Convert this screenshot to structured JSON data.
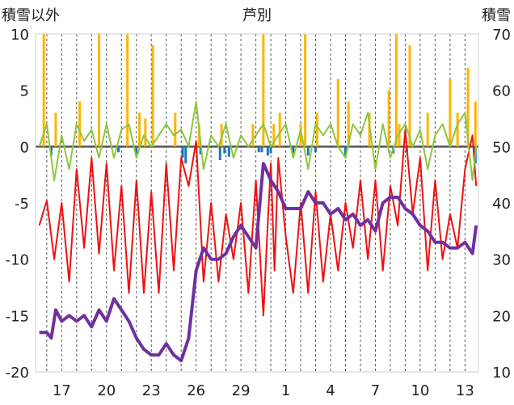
{
  "chart_data": {
    "type": "line",
    "title": "芦別",
    "ylabel_left": "積雪以外",
    "ylabel_right": "積雪",
    "x_tick_labels": [
      "17",
      "20",
      "23",
      "26",
      "29",
      "1",
      "4",
      "7",
      "10",
      "13"
    ],
    "left_axis": {
      "ylim": [
        -20,
        10
      ],
      "ticks": [
        10,
        5,
        0,
        -5,
        -10,
        -15,
        -20
      ]
    },
    "right_axis": {
      "ylim": [
        10,
        70
      ],
      "ticks": [
        70,
        60,
        50,
        40,
        30,
        20,
        10
      ]
    },
    "grid": "vertical dashed, one per day",
    "colors": {
      "red": "#ee1111",
      "green": "#8dc63f",
      "purple": "#7030a0",
      "orange": "#ffb400",
      "blue": "#1f77b4",
      "zero_line": "#555555"
    },
    "series": [
      {
        "axis": "left",
        "color": "red",
        "x": [
          15.5,
          16.0,
          16.5,
          17.0,
          17.5,
          18.0,
          18.5,
          19.0,
          19.5,
          20.0,
          20.5,
          21.0,
          21.5,
          22.0,
          22.5,
          23.0,
          23.5,
          24.0,
          24.5,
          25.0,
          25.5,
          26.0,
          26.5,
          27.0,
          27.5,
          28.0,
          28.5,
          29.0,
          29.5,
          30.0,
          30.5,
          30.75,
          31.0,
          31.25,
          31.5,
          32.0,
          32.5,
          33.0,
          33.5,
          34.0,
          34.5,
          35.0,
          35.5,
          36.0,
          36.5,
          37.0,
          37.5,
          38.0,
          38.5,
          39.0,
          39.5,
          40.0,
          40.5,
          41.0,
          41.5,
          42.0,
          42.5,
          43.0,
          43.5,
          44.0,
          44.5,
          44.75
        ],
        "y": [
          -7,
          -4.8,
          -10,
          -5,
          -12,
          -2,
          -9,
          -1,
          -9.5,
          -1.5,
          -11,
          -3.5,
          -13,
          -3,
          -13,
          -4,
          -13,
          -1.5,
          -11,
          -1,
          -3.5,
          0.5,
          -12,
          -5,
          -12,
          -6,
          -10,
          -5,
          -13,
          -3,
          -15,
          -8,
          -1.5,
          -11,
          -1,
          -8,
          -13,
          -5,
          -13,
          -4,
          -12,
          -6,
          -11,
          -5,
          -9,
          -3,
          -10,
          -3,
          -11,
          -3.5,
          -7,
          1.5,
          -6,
          -1,
          -11,
          -3,
          -10,
          -6,
          -9,
          -2,
          1,
          -3.5
        ]
      },
      {
        "axis": "left",
        "color": "green",
        "x": [
          15.5,
          16.0,
          16.5,
          17.0,
          17.5,
          18.0,
          18.5,
          19.0,
          19.5,
          20.0,
          20.5,
          21.0,
          21.5,
          22.0,
          22.5,
          23.0,
          23.5,
          24.0,
          24.5,
          25.0,
          25.5,
          26.0,
          26.5,
          27.0,
          27.5,
          28.0,
          28.5,
          29.0,
          29.5,
          30.0,
          30.5,
          31.0,
          31.5,
          32.0,
          32.5,
          33.0,
          33.5,
          34.0,
          34.5,
          35.0,
          35.5,
          36.0,
          36.5,
          37.0,
          37.5,
          38.0,
          38.5,
          39.0,
          39.5,
          40.0,
          40.5,
          41.0,
          41.5,
          42.0,
          42.5,
          43.0,
          43.5,
          44.0,
          44.5,
          44.75
        ],
        "y": [
          0,
          2,
          -3,
          1,
          -2,
          2,
          0.5,
          1.5,
          -1,
          2,
          -1,
          1.5,
          2,
          -1,
          1,
          0,
          1,
          2,
          1,
          1.5,
          0,
          4,
          -2,
          1,
          0,
          2,
          -1,
          1,
          0,
          1,
          2,
          0,
          1,
          2,
          -1,
          1.5,
          -2,
          2,
          1,
          2,
          0,
          -1,
          2,
          1,
          3,
          -2,
          2,
          -1,
          1,
          2,
          0,
          1.5,
          -2,
          1,
          2,
          0,
          2,
          3,
          -3,
          0
        ]
      },
      {
        "axis": "right",
        "color": "purple",
        "x": [
          15.5,
          16.0,
          16.3,
          16.6,
          17.0,
          17.5,
          18.0,
          18.5,
          19.0,
          19.5,
          20.0,
          20.5,
          21.0,
          21.5,
          22.0,
          22.5,
          23.0,
          23.5,
          24.0,
          24.5,
          25.0,
          25.5,
          26.0,
          26.5,
          27.0,
          27.5,
          28.0,
          28.5,
          29.0,
          29.5,
          30.0,
          30.5,
          31.0,
          31.5,
          32.0,
          32.5,
          33.0,
          33.5,
          34.0,
          34.5,
          35.0,
          35.5,
          36.0,
          36.5,
          37.0,
          37.5,
          38.0,
          38.5,
          39.0,
          39.5,
          40.0,
          40.5,
          41.0,
          41.5,
          42.0,
          42.5,
          43.0,
          43.5,
          44.0,
          44.5,
          44.75
        ],
        "y": [
          17,
          17,
          16,
          21,
          19,
          20,
          19,
          20,
          18,
          21,
          19,
          23,
          21,
          19,
          16,
          14,
          13,
          13,
          15,
          13,
          12,
          16,
          28,
          32,
          30,
          30,
          31,
          34,
          36,
          34,
          32,
          47,
          44,
          42,
          39,
          39,
          39,
          42,
          40,
          40,
          38,
          39,
          37,
          38,
          36,
          37,
          35,
          40,
          41,
          41,
          39,
          38,
          36,
          35,
          33,
          33,
          32,
          32,
          33,
          31,
          36
        ]
      },
      {
        "axis": "left",
        "color": "orange",
        "style": "spikes",
        "x": [
          15.8,
          16.6,
          18.2,
          19.5,
          21.4,
          22.2,
          22.6,
          23.1,
          24.6,
          26.2,
          27.7,
          29.8,
          30.5,
          31.2,
          31.6,
          33.0,
          33.3,
          34.1,
          35.5,
          36.2,
          37.6,
          38.9,
          39.4,
          39.6,
          40.3,
          41.5,
          43.0,
          43.5,
          44.2,
          44.7
        ],
        "y": [
          10,
          3,
          4,
          10,
          10,
          3,
          2.5,
          9,
          3,
          2,
          2,
          2,
          10,
          2,
          3,
          2,
          10,
          3,
          6,
          4,
          3,
          5,
          10,
          2,
          9,
          3,
          6,
          3,
          7,
          4
        ]
      },
      {
        "axis": "left",
        "color": "blue",
        "style": "bars",
        "x": [
          16.3,
          20.8,
          22.0,
          25.1,
          25.3,
          26.3,
          27.6,
          27.9,
          28.2,
          30.2,
          30.4,
          30.8,
          31.0,
          32.5,
          33.5,
          34.0,
          36.0,
          39.2,
          40.1,
          44.7
        ],
        "y": [
          -0.8,
          -0.5,
          -0.8,
          -1.0,
          -1.5,
          -0.7,
          -1.2,
          -0.6,
          -0.9,
          -0.5,
          -0.5,
          -0.8,
          -0.6,
          -0.6,
          -0.8,
          -0.5,
          -1.0,
          -0.6,
          -0.5,
          -1.5
        ]
      }
    ]
  }
}
